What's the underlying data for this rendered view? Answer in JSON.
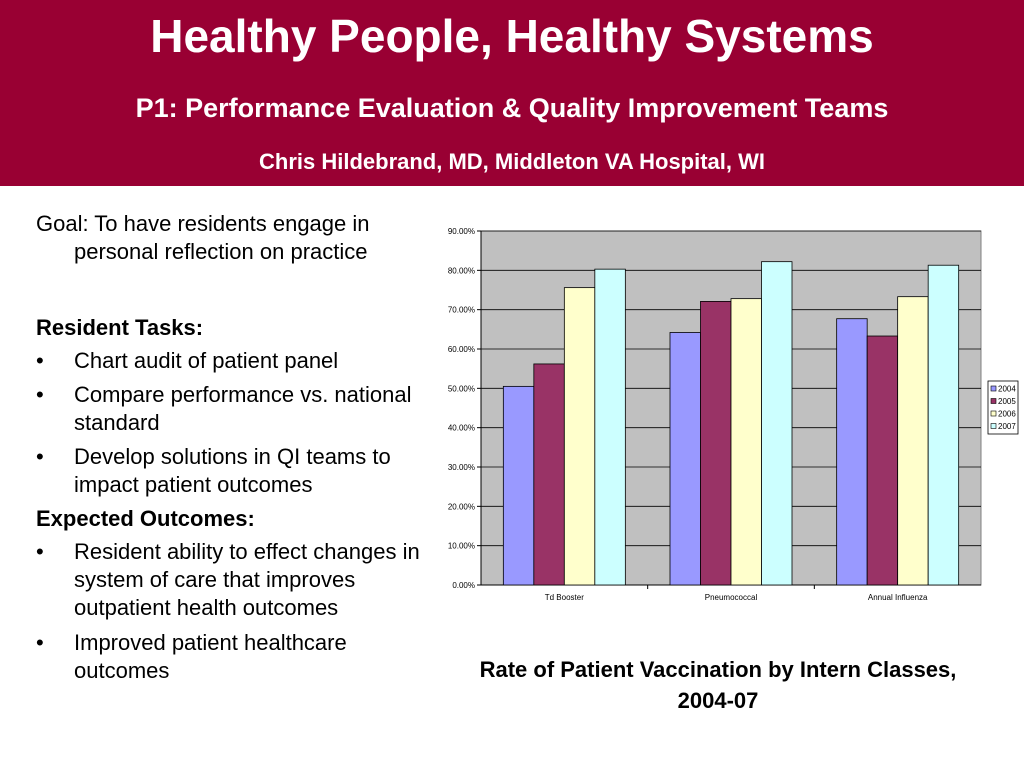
{
  "header": {
    "title": "Healthy People, Healthy Systems",
    "subtitle": "P1: Performance Evaluation & Quality Improvement Teams",
    "author": "Chris Hildebrand, MD, Middleton VA Hospital, WI"
  },
  "left": {
    "goal": "Goal: To have residents engage in personal reflection on practice",
    "tasks_heading": "Resident Tasks:",
    "tasks": [
      "Chart audit of patient panel",
      "Compare performance vs. national standard",
      "Develop solutions in QI teams to impact patient outcomes"
    ],
    "outcomes_heading": "Expected Outcomes:",
    "outcomes": [
      "Resident ability to effect changes in system of care that improves outpatient health outcomes",
      "Improved patient healthcare outcomes"
    ],
    "bullet": "•"
  },
  "chart_data": {
    "type": "bar",
    "categories": [
      "Td Booster",
      "Pneumococcal",
      "Annual Influenza"
    ],
    "series": [
      {
        "name": "2004",
        "values": [
          50.5,
          64.2,
          67.7
        ],
        "color": "#9999ff"
      },
      {
        "name": "2005",
        "values": [
          56.2,
          72.1,
          63.3
        ],
        "color": "#993366"
      },
      {
        "name": "2006",
        "values": [
          75.6,
          72.8,
          73.3
        ],
        "color": "#ffffcc"
      },
      {
        "name": "2007",
        "values": [
          80.3,
          82.2,
          81.3
        ],
        "color": "#ccffff"
      }
    ],
    "ylim": [
      0,
      90
    ],
    "yticks": [
      "0.00%",
      "10.00%",
      "20.00%",
      "30.00%",
      "40.00%",
      "50.00%",
      "60.00%",
      "70.00%",
      "80.00%",
      "90.00%"
    ],
    "plot_background": "#c0c0c0",
    "grid": true,
    "legend": "right",
    "caption": "Rate of Patient Vaccination by Intern Classes, 2004-07"
  }
}
